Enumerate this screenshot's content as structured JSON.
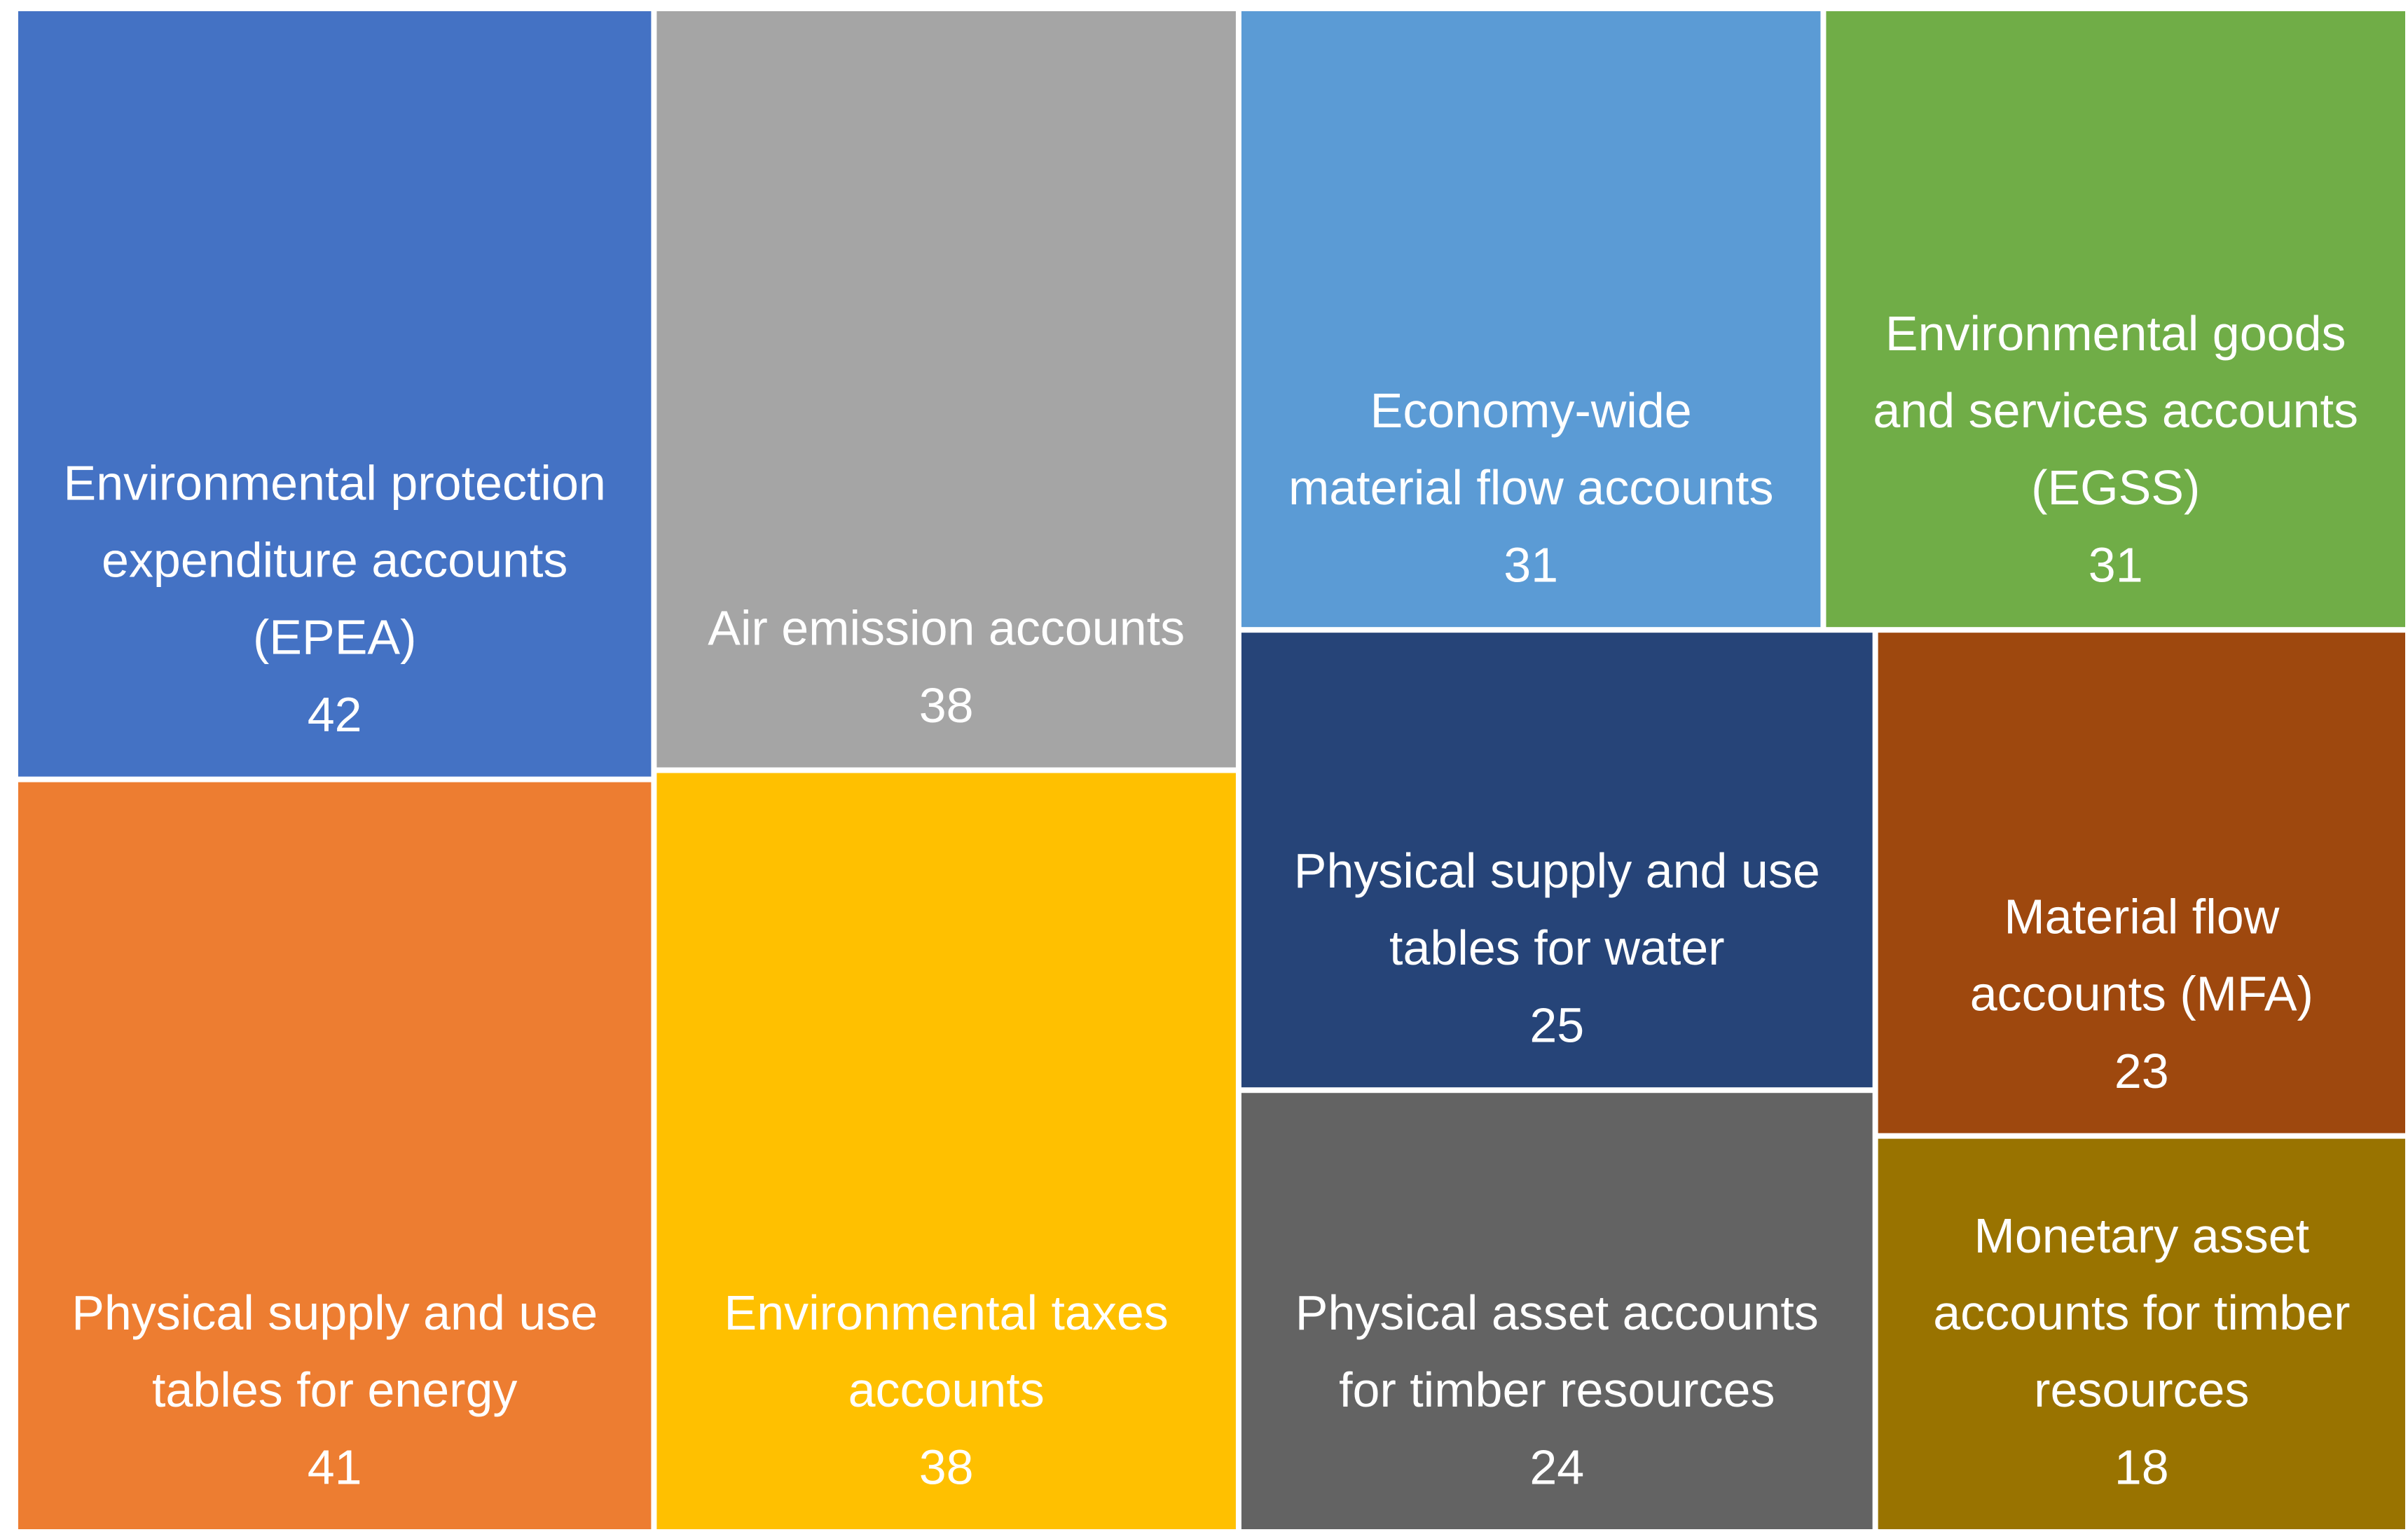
{
  "chart_data": {
    "type": "treemap",
    "categories": [
      "Environmental protection expenditure accounts (EPEA)",
      "Physical supply and use tables for energy",
      "Air emission accounts",
      "Environmental taxes accounts",
      "Economy-wide material flow accounts",
      "Environmental goods and services accounts (EGSS)",
      "Physical supply and use tables for water",
      "Physical asset accounts for timber resources",
      "Material flow accounts (MFA)",
      "Monetary asset accounts for timber resources"
    ],
    "values": [
      42,
      41,
      38,
      38,
      31,
      31,
      25,
      24,
      23,
      18
    ],
    "colors": [
      "#4472c4",
      "#ed7d31",
      "#a5a5a5",
      "#ffc000",
      "#5b9bd5",
      "#70ad47",
      "#264478",
      "#636363",
      "#9e480e",
      "#997300"
    ]
  }
}
